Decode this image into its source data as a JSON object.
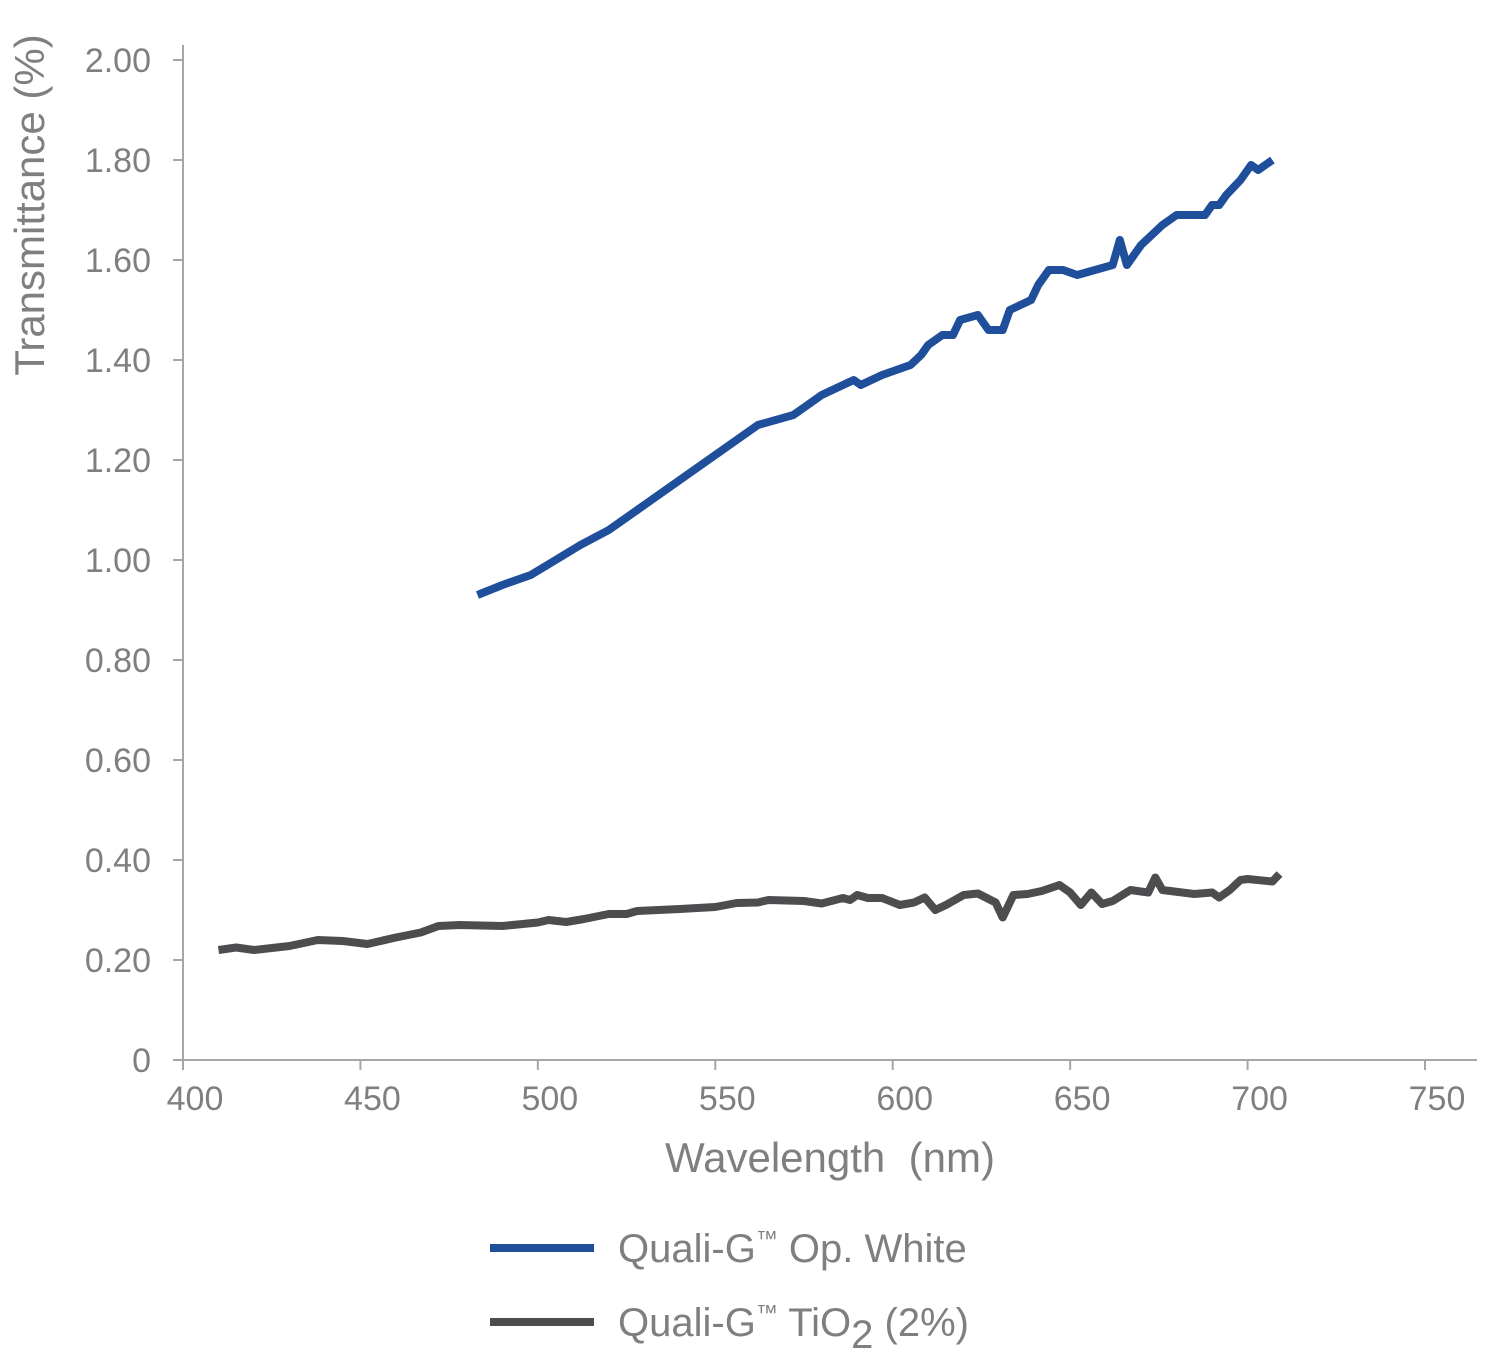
{
  "chart_data": {
    "type": "line",
    "xlabel": "Wavelength  (nm)",
    "ylabel": "Transmittance (%)",
    "xlim": [
      400,
      750
    ],
    "ylim": [
      0,
      2.0
    ],
    "x_ticks": [
      "400",
      "450",
      "500",
      "550",
      "600",
      "650",
      "700",
      "750"
    ],
    "x_tick_values": [
      400,
      450,
      500,
      550,
      600,
      650,
      700,
      750
    ],
    "y_ticks": [
      "0",
      "0.20",
      "0.40",
      "0.60",
      "0.80",
      "1.00",
      "1.20",
      "1.40",
      "1.60",
      "1.80",
      "2.00"
    ],
    "y_tick_values": [
      0,
      0.2,
      0.4,
      0.6,
      0.8,
      1.0,
      1.2,
      1.4,
      1.6,
      1.8,
      2.0
    ],
    "grid": false,
    "legend_position": "bottom",
    "series": [
      {
        "name": "Quali-G™ Op. White",
        "legend_main": "Quali-G",
        "legend_sup": "™",
        "legend_rest": " Op. White",
        "color": "#1f4e9b",
        "points": [
          [
            483,
            0.93
          ],
          [
            490,
            0.95
          ],
          [
            498,
            0.97
          ],
          [
            505,
            1.0
          ],
          [
            512,
            1.03
          ],
          [
            520,
            1.06
          ],
          [
            530,
            1.11
          ],
          [
            540,
            1.16
          ],
          [
            550,
            1.21
          ],
          [
            562,
            1.27
          ],
          [
            572,
            1.29
          ],
          [
            580,
            1.33
          ],
          [
            586,
            1.35
          ],
          [
            589,
            1.36
          ],
          [
            591,
            1.35
          ],
          [
            597,
            1.37
          ],
          [
            605,
            1.39
          ],
          [
            608,
            1.41
          ],
          [
            610,
            1.43
          ],
          [
            614,
            1.45
          ],
          [
            617,
            1.45
          ],
          [
            619,
            1.48
          ],
          [
            624,
            1.49
          ],
          [
            627,
            1.46
          ],
          [
            631,
            1.46
          ],
          [
            633,
            1.5
          ],
          [
            639,
            1.52
          ],
          [
            641,
            1.55
          ],
          [
            644,
            1.58
          ],
          [
            648,
            1.58
          ],
          [
            652,
            1.57
          ],
          [
            657,
            1.58
          ],
          [
            662,
            1.59
          ],
          [
            664,
            1.64
          ],
          [
            666,
            1.59
          ],
          [
            670,
            1.63
          ],
          [
            676,
            1.67
          ],
          [
            680,
            1.69
          ],
          [
            688,
            1.69
          ],
          [
            690,
            1.71
          ],
          [
            692,
            1.71
          ],
          [
            694,
            1.73
          ],
          [
            698,
            1.76
          ],
          [
            701,
            1.79
          ],
          [
            703,
            1.78
          ],
          [
            707,
            1.8
          ]
        ]
      },
      {
        "name": "Quali-G™ TiO2 (2%)",
        "legend_main": "Quali-G",
        "legend_sup": "™",
        "legend_rest": " TiO",
        "legend_sub": "2",
        "legend_tail": " (2%)",
        "color": "#4d4d4f",
        "points": [
          [
            410,
            0.22
          ],
          [
            415,
            0.225
          ],
          [
            420,
            0.22
          ],
          [
            430,
            0.228
          ],
          [
            438,
            0.24
          ],
          [
            445,
            0.238
          ],
          [
            452,
            0.232
          ],
          [
            460,
            0.245
          ],
          [
            467,
            0.255
          ],
          [
            472,
            0.268
          ],
          [
            478,
            0.27
          ],
          [
            490,
            0.268
          ],
          [
            500,
            0.275
          ],
          [
            503,
            0.28
          ],
          [
            508,
            0.276
          ],
          [
            513,
            0.282
          ],
          [
            520,
            0.292
          ],
          [
            525,
            0.292
          ],
          [
            528,
            0.298
          ],
          [
            540,
            0.302
          ],
          [
            550,
            0.306
          ],
          [
            556,
            0.314
          ],
          [
            562,
            0.315
          ],
          [
            565,
            0.32
          ],
          [
            575,
            0.318
          ],
          [
            580,
            0.313
          ],
          [
            586,
            0.324
          ],
          [
            588,
            0.32
          ],
          [
            590,
            0.33
          ],
          [
            593,
            0.324
          ],
          [
            597,
            0.324
          ],
          [
            602,
            0.31
          ],
          [
            606,
            0.315
          ],
          [
            609,
            0.325
          ],
          [
            612,
            0.3
          ],
          [
            615,
            0.31
          ],
          [
            620,
            0.33
          ],
          [
            624,
            0.333
          ],
          [
            629,
            0.315
          ],
          [
            631,
            0.285
          ],
          [
            634,
            0.33
          ],
          [
            638,
            0.332
          ],
          [
            642,
            0.338
          ],
          [
            647,
            0.35
          ],
          [
            650,
            0.335
          ],
          [
            653,
            0.31
          ],
          [
            656,
            0.335
          ],
          [
            659,
            0.312
          ],
          [
            662,
            0.318
          ],
          [
            667,
            0.34
          ],
          [
            672,
            0.335
          ],
          [
            674,
            0.365
          ],
          [
            676,
            0.34
          ],
          [
            685,
            0.332
          ],
          [
            690,
            0.335
          ],
          [
            692,
            0.325
          ],
          [
            695,
            0.34
          ],
          [
            698,
            0.36
          ],
          [
            700,
            0.362
          ],
          [
            707,
            0.357
          ],
          [
            709,
            0.372
          ]
        ]
      }
    ]
  }
}
